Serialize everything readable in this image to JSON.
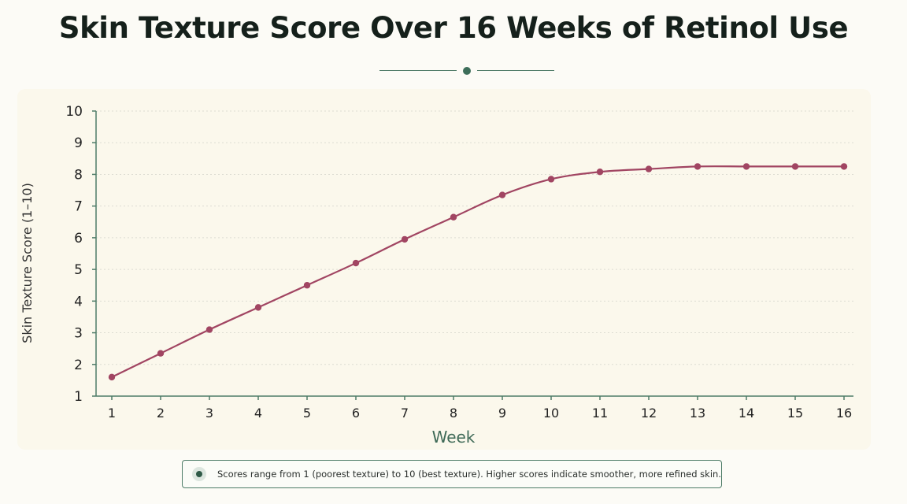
{
  "chart_data": {
    "type": "line",
    "title": "Skin Texture Score Over 16 Weeks of Retinol Use",
    "xlabel": "Week",
    "ylabel": "Skin Texture Score (1–10)",
    "x": [
      1,
      2,
      3,
      4,
      5,
      6,
      7,
      8,
      9,
      10,
      11,
      12,
      13,
      14,
      15,
      16
    ],
    "series": [
      {
        "values": [
          1.6,
          2.35,
          3.1,
          3.8,
          4.5,
          5.2,
          5.95,
          6.65,
          7.35,
          7.85,
          8.08,
          8.17,
          8.25,
          8.25,
          8.25,
          8.25
        ]
      }
    ],
    "xlim": [
      1,
      16
    ],
    "ylim": [
      1,
      10
    ],
    "yticks": [
      1,
      2,
      3,
      4,
      5,
      6,
      7,
      8,
      9,
      10
    ],
    "grid": "horizontal dotted",
    "colors": {
      "line": "#a14562",
      "axis": "#4e7c68",
      "xlabel": "#3f6a57"
    }
  },
  "note": {
    "text": "Scores range from 1 (poorest texture) to 10 (best texture). Higher scores indicate smoother, more refined skin."
  }
}
